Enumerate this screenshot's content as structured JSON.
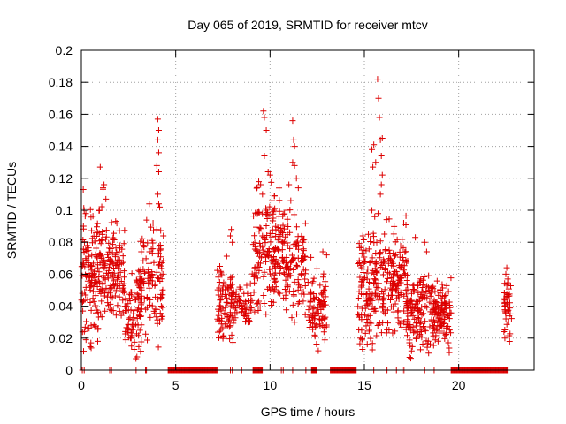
{
  "chart_data": {
    "type": "scatter",
    "title": "Day 065 of 2019, SRMTID for receiver mtcv",
    "xlabel": "GPS time / hours",
    "ylabel": "SRMTID / TECUs",
    "xlim": [
      0,
      24
    ],
    "ylim": [
      0,
      0.2
    ],
    "xticks": [
      0,
      5,
      10,
      15,
      20
    ],
    "yticks": [
      0,
      0.02,
      0.04,
      0.06,
      0.08,
      0.1,
      0.12,
      0.14,
      0.16,
      0.18,
      0.2
    ],
    "ytick_labels": [
      "0",
      "0.02",
      "0.04",
      "0.06",
      "0.08",
      "0.1",
      "0.12",
      "0.14",
      "0.16",
      "0.18",
      "0.2"
    ],
    "grid": true,
    "marker": "+",
    "marker_color": "#dd0000",
    "series": [
      {
        "name": "SRMTID",
        "clusters": [
          {
            "x_range": [
              0.0,
              1.7
            ],
            "y_center": 0.058,
            "y_spread": 0.02,
            "count": 210,
            "seed": 11
          },
          {
            "x_range": [
              1.7,
              2.3
            ],
            "y_center": 0.062,
            "y_spread": 0.014,
            "count": 60,
            "seed": 12
          },
          {
            "x_range": [
              2.3,
              3.2
            ],
            "y_center": 0.036,
            "y_spread": 0.012,
            "count": 80,
            "seed": 13
          },
          {
            "x_range": [
              3.0,
              4.4
            ],
            "y_center": 0.056,
            "y_spread": 0.016,
            "count": 120,
            "seed": 14
          },
          {
            "x_range": [
              7.2,
              8.1
            ],
            "y_center": 0.042,
            "y_spread": 0.012,
            "count": 90,
            "seed": 15
          },
          {
            "x_range": [
              8.1,
              9.1
            ],
            "y_center": 0.042,
            "y_spread": 0.008,
            "count": 60,
            "seed": 16
          },
          {
            "x_range": [
              9.1,
              10.7
            ],
            "y_center": 0.075,
            "y_spread": 0.018,
            "count": 170,
            "seed": 17
          },
          {
            "x_range": [
              10.7,
              11.9
            ],
            "y_center": 0.066,
            "y_spread": 0.014,
            "count": 110,
            "seed": 18
          },
          {
            "x_range": [
              12.0,
              13.0
            ],
            "y_center": 0.04,
            "y_spread": 0.012,
            "count": 90,
            "seed": 19
          },
          {
            "x_range": [
              14.6,
              15.6
            ],
            "y_center": 0.05,
            "y_spread": 0.016,
            "count": 110,
            "seed": 20
          },
          {
            "x_range": [
              15.6,
              17.3
            ],
            "y_center": 0.058,
            "y_spread": 0.016,
            "count": 170,
            "seed": 21
          },
          {
            "x_range": [
              17.2,
              18.6
            ],
            "y_center": 0.036,
            "y_spread": 0.012,
            "count": 140,
            "seed": 22
          },
          {
            "x_range": [
              18.6,
              19.6
            ],
            "y_center": 0.036,
            "y_spread": 0.01,
            "count": 110,
            "seed": 23
          },
          {
            "x_range": [
              22.4,
              22.8
            ],
            "y_center": 0.04,
            "y_spread": 0.01,
            "count": 40,
            "seed": 24
          }
        ],
        "spikes": [
          [
            0.1,
            0.113
          ],
          [
            0.15,
            0.1
          ],
          [
            1.0,
            0.127
          ],
          [
            1.2,
            0.116
          ],
          [
            1.15,
            0.114
          ],
          [
            1.3,
            0.107
          ],
          [
            2.8,
            0.013
          ],
          [
            2.6,
            0.02
          ],
          [
            3.6,
            0.104
          ],
          [
            3.8,
            0.092
          ],
          [
            4.0,
            0.088
          ],
          [
            4.05,
            0.157
          ],
          [
            4.1,
            0.15
          ],
          [
            4.05,
            0.144
          ],
          [
            4.1,
            0.136
          ],
          [
            4.0,
            0.128
          ],
          [
            4.1,
            0.124
          ],
          [
            4.05,
            0.11
          ],
          [
            4.1,
            0.104
          ],
          [
            4.15,
            0.102
          ],
          [
            7.9,
            0.084
          ],
          [
            7.95,
            0.088
          ],
          [
            8.0,
            0.08
          ],
          [
            9.65,
            0.162
          ],
          [
            9.7,
            0.158
          ],
          [
            9.8,
            0.15
          ],
          [
            9.7,
            0.134
          ],
          [
            9.9,
            0.124
          ],
          [
            10.0,
            0.122
          ],
          [
            9.5,
            0.116
          ],
          [
            9.6,
            0.11
          ],
          [
            10.1,
            0.106
          ],
          [
            10.2,
            0.1
          ],
          [
            9.8,
            0.1
          ],
          [
            11.2,
            0.156
          ],
          [
            11.25,
            0.144
          ],
          [
            11.3,
            0.14
          ],
          [
            11.2,
            0.13
          ],
          [
            11.3,
            0.128
          ],
          [
            11.4,
            0.12
          ],
          [
            11.5,
            0.114
          ],
          [
            11.0,
            0.116
          ],
          [
            11.1,
            0.106
          ],
          [
            10.9,
            0.1
          ],
          [
            11.3,
            0.03
          ],
          [
            12.8,
            0.074
          ],
          [
            13.0,
            0.072
          ],
          [
            15.7,
            0.182
          ],
          [
            15.75,
            0.17
          ],
          [
            15.8,
            0.158
          ],
          [
            15.85,
            0.144
          ],
          [
            15.95,
            0.145
          ],
          [
            15.5,
            0.141
          ],
          [
            15.4,
            0.138
          ],
          [
            15.9,
            0.134
          ],
          [
            15.6,
            0.13
          ],
          [
            15.45,
            0.127
          ],
          [
            15.95,
            0.122
          ],
          [
            15.9,
            0.116
          ],
          [
            15.85,
            0.11
          ],
          [
            15.4,
            0.1
          ],
          [
            15.55,
            0.096
          ],
          [
            14.8,
            0.02
          ],
          [
            14.9,
            0.013
          ],
          [
            17.7,
            0.083
          ],
          [
            18.2,
            0.08
          ],
          [
            18.3,
            0.074
          ],
          [
            17.4,
            0.008
          ],
          [
            17.5,
            0.012
          ],
          [
            19.5,
            0.011
          ],
          [
            22.55,
            0.064
          ],
          [
            22.5,
            0.06
          ],
          [
            22.6,
            0.057
          ],
          [
            22.4,
            0.024
          ],
          [
            22.45,
            0.02
          ]
        ],
        "zero_segments": [
          [
            4.6,
            7.2
          ],
          [
            9.1,
            9.6
          ],
          [
            12.2,
            12.5
          ],
          [
            13.2,
            14.6
          ],
          [
            19.6,
            22.6
          ]
        ],
        "zero_points": [
          0.05,
          0.15,
          1.5,
          1.6,
          2.9,
          3.4,
          3.45,
          7.9,
          8.0,
          8.5,
          10.6,
          10.7,
          11.2,
          11.9,
          15.5,
          16.2,
          16.7,
          17.0,
          17.1,
          18.2,
          18.7
        ]
      }
    ]
  }
}
